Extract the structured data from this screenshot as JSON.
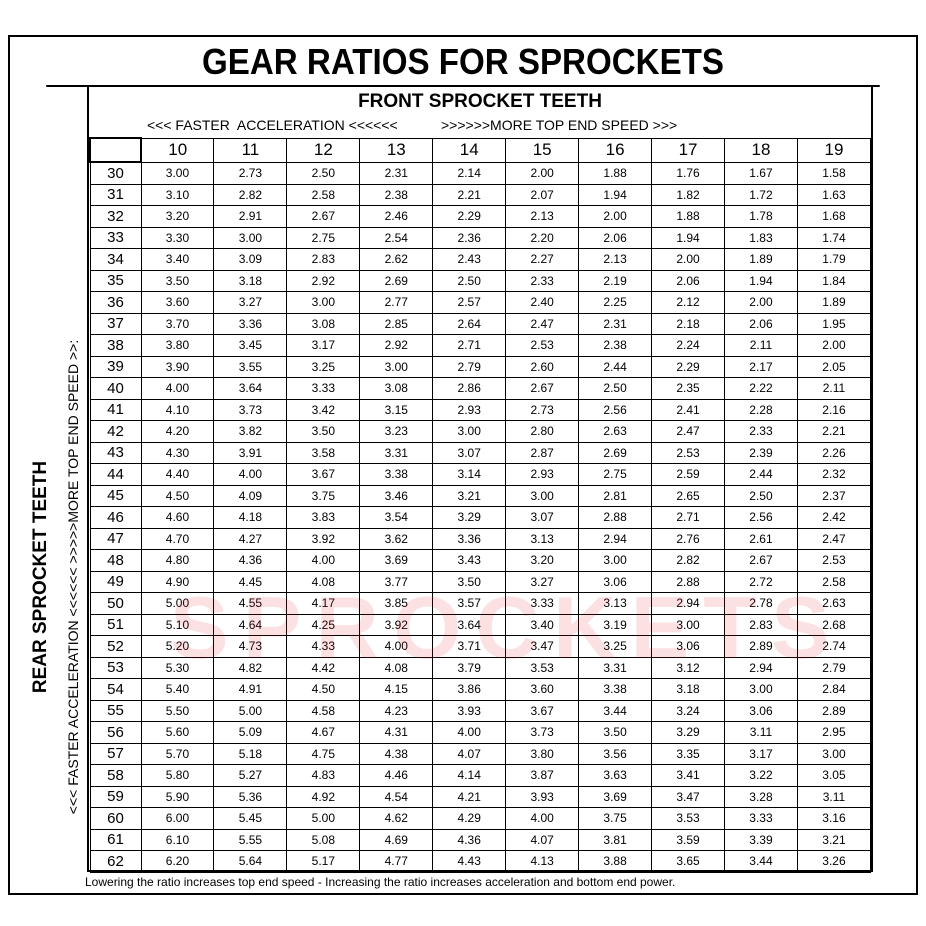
{
  "title": "GEAR RATIOS FOR SPROCKETS",
  "front_title": "FRONT SPROCKET TEETH",
  "front_left_note": "<<< FASTER  ACCELERATION <<<<<<",
  "front_right_note": ">>>>>>MORE TOP END SPEED >>>",
  "rear_title": "REAR SPROCKET TEETH",
  "rear_note": "<<< FASTER  ACCELERATION <<<<<<     >>>>>MORE TOP END SPEED >>:",
  "watermark": "SPROCKETS",
  "footer": "Lowering the ratio increases top end speed - Increasing the ratio increases acceleration and bottom end power.",
  "chart_data": {
    "type": "table",
    "columns": [
      "10",
      "11",
      "12",
      "13",
      "14",
      "15",
      "16",
      "17",
      "18",
      "19"
    ],
    "rows": [
      {
        "rear": "30",
        "values": [
          "3.00",
          "2.73",
          "2.50",
          "2.31",
          "2.14",
          "2.00",
          "1.88",
          "1.76",
          "1.67",
          "1.58"
        ]
      },
      {
        "rear": "31",
        "values": [
          "3.10",
          "2.82",
          "2.58",
          "2.38",
          "2.21",
          "2.07",
          "1.94",
          "1.82",
          "1.72",
          "1.63"
        ]
      },
      {
        "rear": "32",
        "values": [
          "3.20",
          "2.91",
          "2.67",
          "2.46",
          "2.29",
          "2.13",
          "2.00",
          "1.88",
          "1.78",
          "1.68"
        ]
      },
      {
        "rear": "33",
        "values": [
          "3.30",
          "3.00",
          "2.75",
          "2.54",
          "2.36",
          "2.20",
          "2.06",
          "1.94",
          "1.83",
          "1.74"
        ]
      },
      {
        "rear": "34",
        "values": [
          "3.40",
          "3.09",
          "2.83",
          "2.62",
          "2.43",
          "2.27",
          "2.13",
          "2.00",
          "1.89",
          "1.79"
        ]
      },
      {
        "rear": "35",
        "values": [
          "3.50",
          "3.18",
          "2.92",
          "2.69",
          "2.50",
          "2.33",
          "2.19",
          "2.06",
          "1.94",
          "1.84"
        ]
      },
      {
        "rear": "36",
        "values": [
          "3.60",
          "3.27",
          "3.00",
          "2.77",
          "2.57",
          "2.40",
          "2.25",
          "2.12",
          "2.00",
          "1.89"
        ]
      },
      {
        "rear": "37",
        "values": [
          "3.70",
          "3.36",
          "3.08",
          "2.85",
          "2.64",
          "2.47",
          "2.31",
          "2.18",
          "2.06",
          "1.95"
        ]
      },
      {
        "rear": "38",
        "values": [
          "3.80",
          "3.45",
          "3.17",
          "2.92",
          "2.71",
          "2.53",
          "2.38",
          "2.24",
          "2.11",
          "2.00"
        ]
      },
      {
        "rear": "39",
        "values": [
          "3.90",
          "3.55",
          "3.25",
          "3.00",
          "2.79",
          "2.60",
          "2.44",
          "2.29",
          "2.17",
          "2.05"
        ]
      },
      {
        "rear": "40",
        "values": [
          "4.00",
          "3.64",
          "3.33",
          "3.08",
          "2.86",
          "2.67",
          "2.50",
          "2.35",
          "2.22",
          "2.11"
        ]
      },
      {
        "rear": "41",
        "values": [
          "4.10",
          "3.73",
          "3.42",
          "3.15",
          "2.93",
          "2.73",
          "2.56",
          "2.41",
          "2.28",
          "2.16"
        ]
      },
      {
        "rear": "42",
        "values": [
          "4.20",
          "3.82",
          "3.50",
          "3.23",
          "3.00",
          "2.80",
          "2.63",
          "2.47",
          "2.33",
          "2.21"
        ]
      },
      {
        "rear": "43",
        "values": [
          "4.30",
          "3.91",
          "3.58",
          "3.31",
          "3.07",
          "2.87",
          "2.69",
          "2.53",
          "2.39",
          "2.26"
        ]
      },
      {
        "rear": "44",
        "values": [
          "4.40",
          "4.00",
          "3.67",
          "3.38",
          "3.14",
          "2.93",
          "2.75",
          "2.59",
          "2.44",
          "2.32"
        ]
      },
      {
        "rear": "45",
        "values": [
          "4.50",
          "4.09",
          "3.75",
          "3.46",
          "3.21",
          "3.00",
          "2.81",
          "2.65",
          "2.50",
          "2.37"
        ]
      },
      {
        "rear": "46",
        "values": [
          "4.60",
          "4.18",
          "3.83",
          "3.54",
          "3.29",
          "3.07",
          "2.88",
          "2.71",
          "2.56",
          "2.42"
        ]
      },
      {
        "rear": "47",
        "values": [
          "4.70",
          "4.27",
          "3.92",
          "3.62",
          "3.36",
          "3.13",
          "2.94",
          "2.76",
          "2.61",
          "2.47"
        ]
      },
      {
        "rear": "48",
        "values": [
          "4.80",
          "4.36",
          "4.00",
          "3.69",
          "3.43",
          "3.20",
          "3.00",
          "2.82",
          "2.67",
          "2.53"
        ]
      },
      {
        "rear": "49",
        "values": [
          "4.90",
          "4.45",
          "4.08",
          "3.77",
          "3.50",
          "3.27",
          "3.06",
          "2.88",
          "2.72",
          "2.58"
        ]
      },
      {
        "rear": "50",
        "values": [
          "5.00",
          "4.55",
          "4.17",
          "3.85",
          "3.57",
          "3.33",
          "3.13",
          "2.94",
          "2.78",
          "2.63"
        ]
      },
      {
        "rear": "51",
        "values": [
          "5.10",
          "4.64",
          "4.25",
          "3.92",
          "3.64",
          "3.40",
          "3.19",
          "3.00",
          "2.83",
          "2.68"
        ]
      },
      {
        "rear": "52",
        "values": [
          "5.20",
          "4.73",
          "4.33",
          "4.00",
          "3.71",
          "3.47",
          "3.25",
          "3.06",
          "2.89",
          "2.74"
        ]
      },
      {
        "rear": "53",
        "values": [
          "5.30",
          "4.82",
          "4.42",
          "4.08",
          "3.79",
          "3.53",
          "3.31",
          "3.12",
          "2.94",
          "2.79"
        ]
      },
      {
        "rear": "54",
        "values": [
          "5.40",
          "4.91",
          "4.50",
          "4.15",
          "3.86",
          "3.60",
          "3.38",
          "3.18",
          "3.00",
          "2.84"
        ]
      },
      {
        "rear": "55",
        "values": [
          "5.50",
          "5.00",
          "4.58",
          "4.23",
          "3.93",
          "3.67",
          "3.44",
          "3.24",
          "3.06",
          "2.89"
        ]
      },
      {
        "rear": "56",
        "values": [
          "5.60",
          "5.09",
          "4.67",
          "4.31",
          "4.00",
          "3.73",
          "3.50",
          "3.29",
          "3.11",
          "2.95"
        ]
      },
      {
        "rear": "57",
        "values": [
          "5.70",
          "5.18",
          "4.75",
          "4.38",
          "4.07",
          "3.80",
          "3.56",
          "3.35",
          "3.17",
          "3.00"
        ]
      },
      {
        "rear": "58",
        "values": [
          "5.80",
          "5.27",
          "4.83",
          "4.46",
          "4.14",
          "3.87",
          "3.63",
          "3.41",
          "3.22",
          "3.05"
        ]
      },
      {
        "rear": "59",
        "values": [
          "5.90",
          "5.36",
          "4.92",
          "4.54",
          "4.21",
          "3.93",
          "3.69",
          "3.47",
          "3.28",
          "3.11"
        ]
      },
      {
        "rear": "60",
        "values": [
          "6.00",
          "5.45",
          "5.00",
          "4.62",
          "4.29",
          "4.00",
          "3.75",
          "3.53",
          "3.33",
          "3.16"
        ]
      },
      {
        "rear": "61",
        "values": [
          "6.10",
          "5.55",
          "5.08",
          "4.69",
          "4.36",
          "4.07",
          "3.81",
          "3.59",
          "3.39",
          "3.21"
        ]
      },
      {
        "rear": "62",
        "values": [
          "6.20",
          "5.64",
          "5.17",
          "4.77",
          "4.43",
          "4.13",
          "3.88",
          "3.65",
          "3.44",
          "3.26"
        ]
      }
    ]
  }
}
